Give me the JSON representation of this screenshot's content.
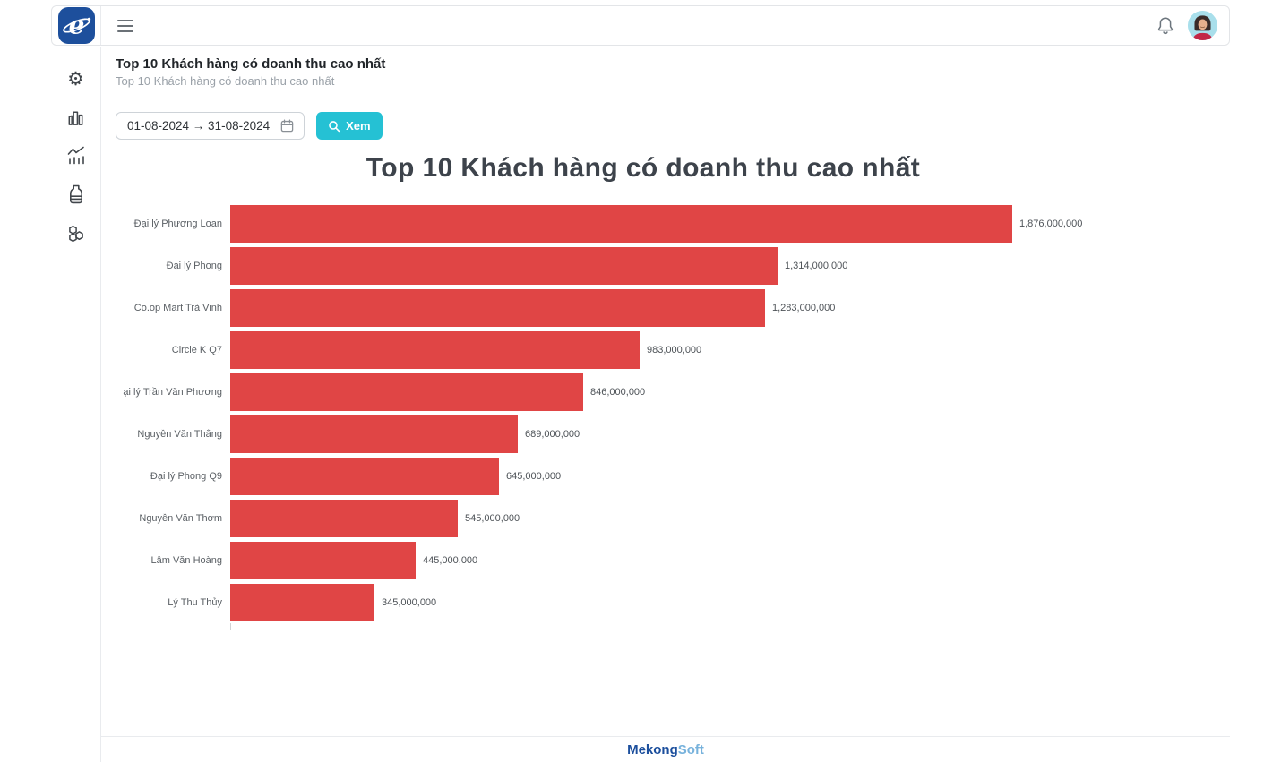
{
  "page": {
    "title": "Top 10 Khách hàng có doanh thu cao nhất",
    "subtitle": "Top 10 Khách hàng có doanh thu cao nhất"
  },
  "controls": {
    "date_range_value": "01-08-2024 → 31-08-2024",
    "view_button_label": "Xem"
  },
  "chart_data": {
    "type": "bar",
    "orientation": "horizontal",
    "title": "Top 10 Khách hàng có doanh thu cao nhất",
    "categories": [
      "Đại lý Phương Loan",
      "Đại lý Phong",
      "Co.op Mart Trà Vinh",
      "Circle K Q7",
      "ại lý Trần Văn Phương",
      "Nguyễn Văn Thắng",
      "Đại lý Phong Q9",
      "Nguyễn Văn Thơm",
      "Lâm Văn Hoàng",
      "Lý Thu Thủy"
    ],
    "values": [
      1876000000,
      1314000000,
      1283000000,
      983000000,
      846000000,
      689000000,
      645000000,
      545000000,
      445000000,
      345000000
    ],
    "value_labels": [
      "1,876,000,000",
      "1,314,000,000",
      "1,283,000,000",
      "983,000,000",
      "846,000,000",
      "689,000,000",
      "645,000,000",
      "545,000,000",
      "445,000,000",
      "345,000,000"
    ],
    "bar_color": "#e04545",
    "xlim": [
      0,
      1876000000
    ],
    "grid": false,
    "legend": false
  },
  "footer": {
    "brand_primary": "Mekong",
    "brand_secondary": "Soft"
  },
  "sidebar": {
    "items": [
      {
        "icon": "gear-icon"
      },
      {
        "icon": "bar-chart-icon"
      },
      {
        "icon": "trend-chart-icon"
      },
      {
        "icon": "bottle-icon"
      },
      {
        "icon": "molecules-icon"
      }
    ]
  },
  "colors": {
    "bar": "#e04545",
    "accent_teal": "#25c1d4",
    "logo_blue": "#1d4f9c",
    "brand_primary_color": "#1c4f9d",
    "brand_secondary_color": "#77b2dc"
  }
}
